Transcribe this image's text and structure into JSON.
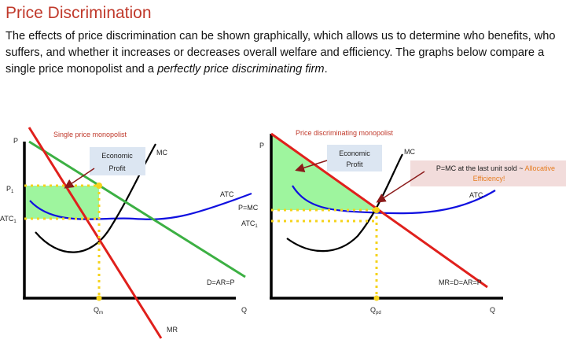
{
  "page": {
    "title": "Price Discrimination",
    "intro_text": "The effects of price discrimination can be shown graphically, which allows us to determine who benefits, who suffers, and whether it increases or decreases overall welfare and efficiency. The graphs below compare a single price monopolist and a ",
    "intro_emphasis": "perfectly price discriminating firm",
    "intro_end": "."
  },
  "left_graph": {
    "title": "Single price monopolist",
    "y_axis": "P",
    "p_label": "P",
    "p_sub": "1",
    "atc_label": "ATC",
    "atc_sub": "1",
    "callout_line1": "Economic",
    "callout_line2": "Profit",
    "mc_label": "MC",
    "atc_curve_label": "ATC",
    "demand_label": "D=AR=P",
    "q_label": "Q",
    "q_sub": "m",
    "x_axis": "Q",
    "mr_label": "MR"
  },
  "right_graph": {
    "title": "Price discriminating monopolist",
    "y_axis": "P",
    "callout_line1": "Economic",
    "callout_line2": "Profit",
    "mc_label": "MC",
    "note_plain": "P=MC at the last unit sold ~ ",
    "note_highlight": "Allocative",
    "note_line2": "Efficiency!",
    "atc_curve_label": "ATC",
    "pmc_label": "P=MC",
    "atc_label": "ATC",
    "atc_sub": "1",
    "demand_label": "MR=D=AR=P",
    "q_label": "Q",
    "q_sub": "pd",
    "x_axis": "Q"
  },
  "colors": {
    "title": "#c0392b",
    "profit_fill": "#9ef59e",
    "demand": "#3cb043",
    "mr": "#e0201c",
    "atc": "#1010e0",
    "dotted": "#f5d31c",
    "callout_bg": "#dce6f2",
    "note_bg": "#f2dcdb",
    "arrow": "#8b1a1a"
  }
}
